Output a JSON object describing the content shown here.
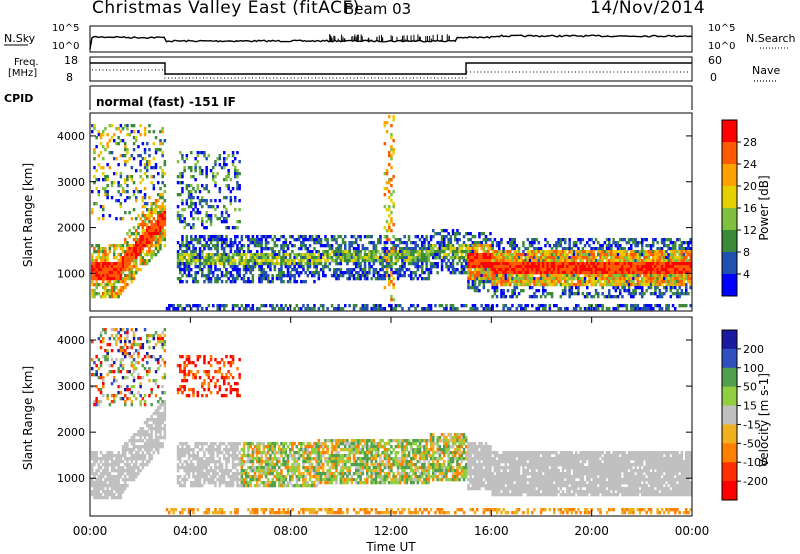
{
  "header": {
    "title": "Christmas Valley East (fitACF)",
    "beam": "Beam 03",
    "date": "14/Nov/2014"
  },
  "top_panels": {
    "nsky_label": "N.Sky",
    "nsky_ticks": [
      "10^5",
      "10^0"
    ],
    "nsearch_label": "N.Search",
    "nsearch_ticks": [
      "10^5",
      "10^0"
    ],
    "freq_label": "Freq.",
    "freq_unit": "[MHz]",
    "freq_ticks": [
      "18",
      "8"
    ],
    "nave_label": "Nave",
    "nave_ticks": [
      "60",
      "0"
    ],
    "cpid_label": "CPID",
    "cpid_value": "normal (fast) -151 IF"
  },
  "chart_data": [
    {
      "type": "heatmap",
      "name": "power-panel",
      "ylabel": "Slant Range [km]",
      "yticks": [
        1000,
        2000,
        3000,
        4000
      ],
      "ylim": [
        180,
        4500
      ],
      "xlim_hours": [
        0,
        24
      ],
      "colorbar": {
        "label": "Power [dB]",
        "ticks": [
          "28",
          "24",
          "20",
          "16",
          "12",
          "8",
          "4"
        ],
        "colors": [
          "#ff0000",
          "#ff5a00",
          "#ffa200",
          "#e6d000",
          "#80c040",
          "#3a8a3a",
          "#2050b0",
          "#0000ff"
        ]
      }
    },
    {
      "type": "heatmap",
      "name": "velocity-panel",
      "ylabel": "Slant Range [km]",
      "yticks": [
        1000,
        2000,
        3000,
        4000
      ],
      "ylim": [
        180,
        4500
      ],
      "xlim_hours": [
        0,
        24
      ],
      "colorbar": {
        "label": "Velocity [m s-1]",
        "ticks": [
          "200",
          "100",
          "50",
          "15",
          "-15",
          "-50",
          "-100",
          "-200"
        ],
        "colors": [
          "#1a1aa0",
          "#3050c0",
          "#50a050",
          "#90d040",
          "#c0c0c0",
          "#f0b020",
          "#ff8000",
          "#ff3000",
          "#ff0000"
        ]
      }
    }
  ],
  "xaxis": {
    "label": "Time UT",
    "ticks": [
      "00:00",
      "04:00",
      "08:00",
      "12:00",
      "16:00",
      "20:00",
      "00:00"
    ]
  }
}
